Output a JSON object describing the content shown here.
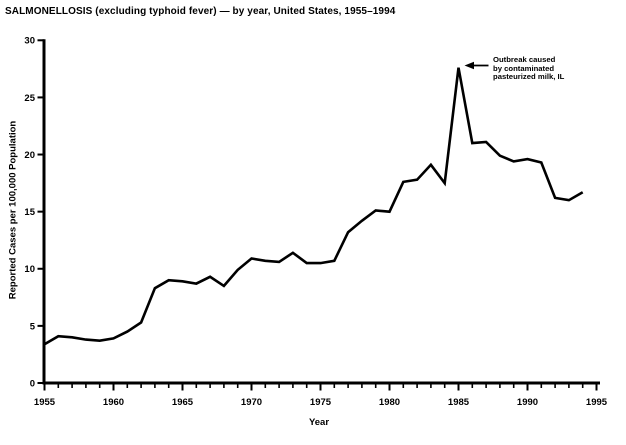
{
  "title": "SALMONELLOSIS (excluding typhoid fever) — by year, United States, 1955–1994",
  "annotation": {
    "lines": [
      "Outbreak caused",
      "by contaminated",
      "pasteurized milk, IL"
    ],
    "points_to_year": 1985
  },
  "colors": {
    "line": "#000000",
    "axis": "#000000",
    "text": "#000000",
    "background": "#ffffff"
  },
  "chart_data": {
    "type": "line",
    "title": "SALMONELLOSIS (excluding typhoid fever) — by year, United States, 1955–1994",
    "xlabel": "Year",
    "ylabel": "Reported Cases per 100,000 Population",
    "xlim": [
      1955,
      1995
    ],
    "ylim": [
      0,
      30
    ],
    "grid": false,
    "legend": "none",
    "x_major_ticks": [
      1955,
      1960,
      1965,
      1970,
      1975,
      1980,
      1985,
      1990,
      1995
    ],
    "x_minor_tick_interval": 1,
    "y_ticks": [
      0,
      5,
      10,
      15,
      20,
      25,
      30
    ],
    "x": [
      1955,
      1956,
      1957,
      1958,
      1959,
      1960,
      1961,
      1962,
      1963,
      1964,
      1965,
      1966,
      1967,
      1968,
      1969,
      1970,
      1971,
      1972,
      1973,
      1974,
      1975,
      1976,
      1977,
      1978,
      1979,
      1980,
      1981,
      1982,
      1983,
      1984,
      1985,
      1986,
      1987,
      1988,
      1989,
      1990,
      1991,
      1992,
      1993,
      1994
    ],
    "values": [
      3.4,
      4.1,
      4.0,
      3.8,
      3.7,
      3.9,
      4.5,
      5.3,
      8.3,
      9.0,
      8.9,
      8.7,
      9.3,
      8.5,
      9.9,
      10.9,
      10.7,
      10.6,
      11.4,
      10.5,
      10.5,
      10.7,
      13.2,
      14.2,
      15.1,
      15.0,
      17.6,
      17.8,
      19.1,
      17.5,
      27.6,
      21.0,
      21.1,
      19.9,
      19.4,
      19.6,
      19.3,
      16.2,
      16.0,
      16.7
    ],
    "annotations": [
      {
        "year": 1985,
        "value": 27.6,
        "text": "Outbreak caused by contaminated pasteurized milk, IL"
      }
    ]
  }
}
